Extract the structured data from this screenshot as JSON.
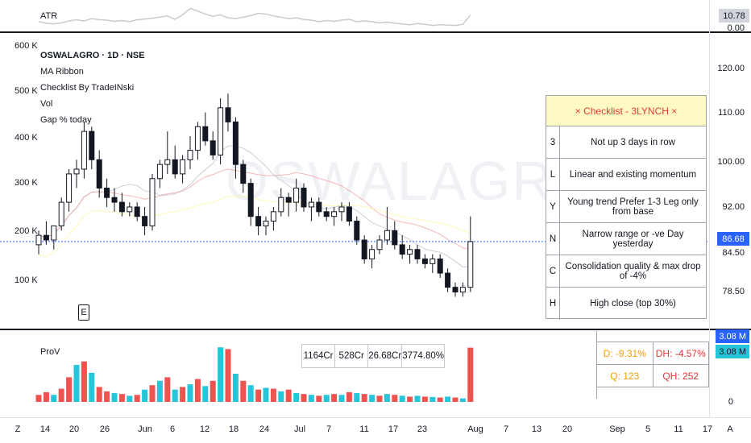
{
  "atr": {
    "label": "ATR",
    "value": "10.78",
    "zero": "0.00"
  },
  "legend": {
    "symbol": "OSWALAGRO · 1D · NSE",
    "indicators": [
      "MA Ribbon",
      "Checklist By TradeINski",
      "Vol",
      "Gap % today"
    ]
  },
  "watermark": "OSWALAGRO, 1D",
  "left_axis": [
    "600 K",
    "500 K",
    "400 K",
    "300 K",
    "200 K",
    "100 K"
  ],
  "price_axis": [
    "120.00",
    "110.00",
    "100.00",
    "92.00",
    "84.50",
    "78.50"
  ],
  "current_price": "86.68",
  "earnings_marker": "E",
  "checklist": {
    "title": "×  Checklist - 3LYNCH  ×",
    "rows": [
      {
        "key": "3",
        "text": "Not up 3 days in row"
      },
      {
        "key": "L",
        "text": "Linear and existing momentum"
      },
      {
        "key": "Y",
        "text": "Young trend Prefer 1-3 Leg only from base"
      },
      {
        "key": "N",
        "text": "Narrow range or -ve Day yesterday"
      },
      {
        "key": "C",
        "text": "Consolidation quality & max drop of -4%"
      },
      {
        "key": "H",
        "text": "High close (top 30%)"
      }
    ]
  },
  "volume_pane": {
    "label": "ProV",
    "gap_box": [
      "1164Cr",
      "528Cr",
      "26.68Cr",
      "3774.80%"
    ],
    "stats": [
      {
        "a": "D: -9.31%",
        "b": "DH: -4.57%"
      },
      {
        "a": "Q: 123",
        "b": "QH: 252"
      }
    ],
    "badge1": "3.08 M",
    "badge2": "3.08 M",
    "axis_zero": "0"
  },
  "x_axis": [
    "Z",
    "14",
    "20",
    "26",
    "Jun",
    "6",
    "12",
    "18",
    "24",
    "Jul",
    "7",
    "11",
    "17",
    "23",
    "Aug",
    "7",
    "13",
    "20",
    "Sep",
    "5",
    "11",
    "17",
    "A"
  ],
  "colors": {
    "up": "#26a69a",
    "down": "#131722",
    "vol_up": "#26c6da",
    "vol_down": "#ef5350",
    "price_line": "#2962ff"
  },
  "chart_data": {
    "type": "candlestick",
    "candles": [
      [
        86,
        89,
        84,
        88
      ],
      [
        88,
        91,
        86,
        87
      ],
      [
        87,
        90,
        85,
        90
      ],
      [
        90,
        96,
        89,
        95
      ],
      [
        95,
        102,
        93,
        101
      ],
      [
        101,
        104,
        98,
        102
      ],
      [
        102,
        112,
        100,
        110
      ],
      [
        110,
        111,
        102,
        104
      ],
      [
        104,
        106,
        96,
        98
      ],
      [
        98,
        100,
        94,
        96
      ],
      [
        96,
        98,
        93,
        95
      ],
      [
        95,
        97,
        92,
        93
      ],
      [
        93,
        95,
        92,
        94
      ],
      [
        94,
        95,
        91,
        92
      ],
      [
        92,
        94,
        88,
        90
      ],
      [
        90,
        101,
        89,
        100
      ],
      [
        100,
        104,
        98,
        103
      ],
      [
        103,
        110,
        101,
        104
      ],
      [
        104,
        107,
        100,
        101
      ],
      [
        101,
        105,
        99,
        104
      ],
      [
        104,
        109,
        102,
        106
      ],
      [
        106,
        112,
        104,
        111
      ],
      [
        111,
        114,
        107,
        108
      ],
      [
        108,
        110,
        104,
        105
      ],
      [
        105,
        117,
        103,
        115
      ],
      [
        115,
        118,
        110,
        112
      ],
      [
        112,
        113,
        100,
        103
      ],
      [
        103,
        104,
        97,
        99
      ],
      [
        99,
        100,
        90,
        92
      ],
      [
        92,
        94,
        88,
        90
      ],
      [
        90,
        92,
        88,
        91
      ],
      [
        91,
        94,
        89,
        93
      ],
      [
        93,
        98,
        92,
        96
      ],
      [
        96,
        97,
        92,
        95
      ],
      [
        95,
        100,
        93,
        98
      ],
      [
        98,
        99,
        93,
        94
      ],
      [
        94,
        96,
        91,
        95
      ],
      [
        95,
        96,
        92,
        93
      ],
      [
        93,
        94,
        91,
        92
      ],
      [
        92,
        94,
        90,
        93
      ],
      [
        93,
        95,
        91,
        94
      ],
      [
        94,
        95,
        90,
        91
      ],
      [
        91,
        92,
        86,
        87
      ],
      [
        87,
        88,
        82,
        83
      ],
      [
        83,
        86,
        81,
        85
      ],
      [
        85,
        88,
        84,
        87
      ],
      [
        87,
        94,
        86,
        89
      ],
      [
        89,
        91,
        85,
        86
      ],
      [
        86,
        88,
        83,
        84
      ],
      [
        84,
        86,
        82,
        85
      ],
      [
        85,
        86,
        82,
        83
      ],
      [
        83,
        84,
        81,
        82
      ],
      [
        82,
        84,
        80,
        83
      ],
      [
        83,
        84,
        79,
        80
      ],
      [
        80,
        81,
        76,
        77
      ],
      [
        77,
        78,
        75,
        76
      ],
      [
        76,
        78,
        75,
        77
      ],
      [
        77,
        92,
        76,
        86.68
      ]
    ],
    "volume": [
      [
        40,
        0
      ],
      [
        55,
        0
      ],
      [
        40,
        1
      ],
      [
        75,
        0
      ],
      [
        140,
        0
      ],
      [
        210,
        1
      ],
      [
        230,
        0
      ],
      [
        165,
        1
      ],
      [
        85,
        0
      ],
      [
        60,
        0
      ],
      [
        50,
        1
      ],
      [
        45,
        0
      ],
      [
        35,
        1
      ],
      [
        40,
        0
      ],
      [
        70,
        1
      ],
      [
        95,
        0
      ],
      [
        120,
        1
      ],
      [
        140,
        0
      ],
      [
        70,
        1
      ],
      [
        85,
        0
      ],
      [
        100,
        1
      ],
      [
        130,
        0
      ],
      [
        90,
        1
      ],
      [
        120,
        0
      ],
      [
        310,
        1
      ],
      [
        300,
        0
      ],
      [
        160,
        1
      ],
      [
        120,
        0
      ],
      [
        95,
        1
      ],
      [
        70,
        0
      ],
      [
        80,
        1
      ],
      [
        75,
        0
      ],
      [
        60,
        1
      ],
      [
        70,
        0
      ],
      [
        50,
        1
      ],
      [
        45,
        0
      ],
      [
        40,
        1
      ],
      [
        35,
        0
      ],
      [
        40,
        1
      ],
      [
        45,
        0
      ],
      [
        40,
        1
      ],
      [
        55,
        0
      ],
      [
        50,
        1
      ],
      [
        45,
        0
      ],
      [
        40,
        1
      ],
      [
        35,
        0
      ],
      [
        45,
        1
      ],
      [
        40,
        0
      ],
      [
        35,
        1
      ],
      [
        30,
        0
      ],
      [
        35,
        1
      ],
      [
        30,
        0
      ],
      [
        28,
        1
      ],
      [
        25,
        0
      ],
      [
        30,
        1
      ],
      [
        25,
        0
      ],
      [
        20,
        1
      ],
      [
        308,
        0
      ]
    ],
    "atr_values": [
      9,
      8.6,
      8.4,
      8.7,
      9.2,
      9.5,
      9.2,
      9.8,
      9.5,
      9.4,
      9.1,
      9.3,
      9.0,
      9.5,
      9.7,
      9.9,
      10.2,
      10.5,
      9.6,
      10.8,
      12.5,
      11.8,
      11,
      10.4,
      10.8,
      10,
      9.8,
      10.2,
      10.6,
      11.2,
      11,
      10.5,
      10.2,
      9.8,
      10,
      9.6,
      9.4,
      9,
      9.3,
      9.1,
      9.4,
      9.6,
      9,
      9.2,
      9,
      8.7,
      8.9,
      8.6,
      8.4,
      8.2,
      8.5,
      8.3,
      8,
      8.2,
      8.1,
      8,
      8.3,
      10.78
    ],
    "ylim": [
      72,
      124
    ]
  }
}
